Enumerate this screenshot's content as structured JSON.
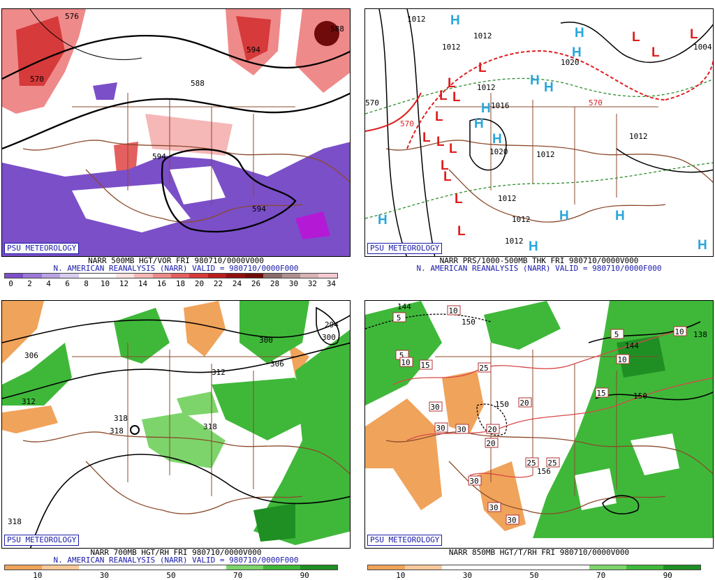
{
  "badge": "PSU METEOROLOGY",
  "panels": [
    {
      "line1": "NARR 500MB HGT/VOR FRI 980710/0000V000",
      "line2": "N. AMERICAN REANALYSIS (NARR) VALID = 980710/0000F000",
      "colorbar": {
        "labels": [
          "0",
          "2",
          "4",
          "6",
          "8",
          "10",
          "12",
          "14",
          "16",
          "18",
          "20",
          "22",
          "24",
          "26",
          "28",
          "30",
          "32",
          "34"
        ],
        "colors": [
          "#7b4fc8",
          "#9a78d6",
          "#b9a3e3",
          "#d7cdf0",
          "#ffffff",
          "#ffffff",
          "#fbe3e3",
          "#f6b7b7",
          "#ef8a8a",
          "#e45f5f",
          "#d63a3a",
          "#b81d1d",
          "#901010",
          "#700b0b",
          "#8a6a6a",
          "#b08f8f",
          "#d8b4b4",
          "#f4c9d2"
        ]
      },
      "contour_labels": [
        "570",
        "588",
        "594",
        "594",
        "594",
        "588",
        "576"
      ]
    },
    {
      "line1": "NARR PRS/1000-500MB THK FRI 980710/0000V000",
      "line2": "N. AMERICAN REANALYSIS (NARR) VALID = 980710/0000F000",
      "contour_labels": [
        "1012",
        "1012",
        "1012",
        "1012",
        "1012",
        "1012",
        "1016",
        "1020",
        "1012",
        "1012",
        "1020",
        "1004",
        "1012",
        "570",
        "570",
        "570"
      ],
      "highs": [
        "H",
        "H",
        "H",
        "H",
        "H",
        "H",
        "H",
        "H",
        "H",
        "H",
        "H",
        "H",
        "H"
      ],
      "lows": [
        "L",
        "L",
        "L",
        "L",
        "L",
        "L",
        "L",
        "L",
        "L",
        "L",
        "L",
        "L",
        "L",
        "L",
        "L"
      ]
    },
    {
      "line1": "NARR 700MB HGT/RH FRI 980710/0000V000",
      "line2": "N. AMERICAN REANALYSIS (NARR) VALID = 980710/0000F000",
      "colorbar": {
        "labels": [
          "10",
          "30",
          "50",
          "70",
          "90"
        ],
        "colors": [
          "#f0a35a",
          "#f7c89a",
          "#ffffff",
          "#ffffff",
          "#ffffff",
          "#ffffff",
          "#7dd46b",
          "#3fb83a",
          "#1f8f24"
        ]
      },
      "contour_labels": [
        "306",
        "312",
        "300",
        "300",
        "294",
        "306",
        "312",
        "318",
        "318",
        "318",
        "318"
      ]
    },
    {
      "line1": "NARR 850MB HGT/T/RH FRI 980710/0000V000",
      "line2": "",
      "colorbar": {
        "labels": [
          "10",
          "30",
          "50",
          "70",
          "90"
        ],
        "colors": [
          "#f0a35a",
          "#f7c89a",
          "#ffffff",
          "#ffffff",
          "#ffffff",
          "#ffffff",
          "#7dd46b",
          "#3fb83a",
          "#1f8f24"
        ]
      },
      "contour_labels": [
        "144",
        "150",
        "150",
        "156",
        "144",
        "138",
        "150"
      ],
      "temp_labels": [
        "5",
        "5",
        "5",
        "10",
        "10",
        "10",
        "10",
        "15",
        "15",
        "20",
        "20",
        "20",
        "25",
        "25",
        "25",
        "30",
        "30",
        "30",
        "30",
        "30",
        "30"
      ]
    }
  ]
}
